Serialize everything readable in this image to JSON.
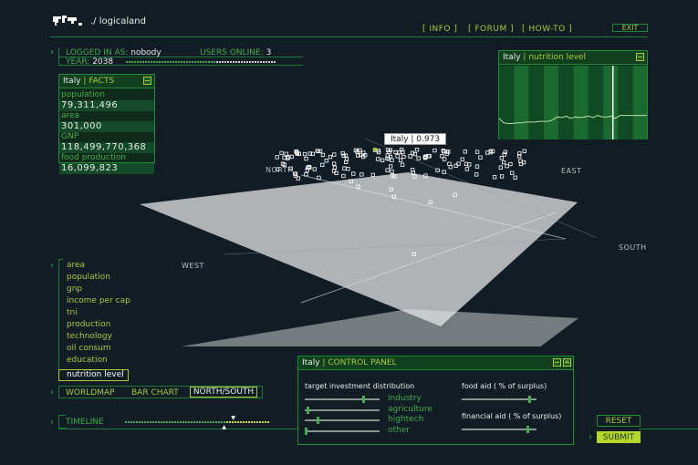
{
  "app": {
    "title": "./  logicaland",
    "logo_icon": "world-map-icon"
  },
  "nav": {
    "info": "[ INFO ]",
    "forum": "[ FORUM ]",
    "howto": "[ HOW-TO ]",
    "exit": "EXIT"
  },
  "status": {
    "logged_label": "LOGGED IN AS:",
    "user": "nobody",
    "online_label": "USERS ONLINE:",
    "online": "3",
    "year_label": "YEAR:",
    "year": "2038",
    "year_progress": 0.6
  },
  "facts": {
    "country": "Italy",
    "title": "FACTS",
    "items": [
      {
        "label": "population",
        "value": "79,311,496"
      },
      {
        "label": "area",
        "value": "301,000"
      },
      {
        "label": "GNP",
        "value": "118,499,770,368"
      },
      {
        "label": "food production",
        "value": "16,099,823"
      }
    ]
  },
  "nutrition": {
    "country": "Italy",
    "title": "nutrition level",
    "series": [
      0.78,
      0.72,
      0.71,
      0.71,
      0.72,
      0.72,
      0.73,
      0.73,
      0.73,
      0.74,
      0.74,
      0.74,
      0.76,
      0.8,
      0.79,
      0.81,
      0.78,
      0.8,
      0.79,
      0.8,
      0.81,
      0.79,
      0.82,
      0.8,
      0.8,
      0.81,
      0.78,
      0.82,
      0.82,
      0.82,
      0.82,
      0.82,
      0.82,
      0.82
    ],
    "cursor": 0.77
  },
  "plot": {
    "tooltip": "Italy | 0.973",
    "north": "NORTH",
    "east": "EAST",
    "south": "SOUTH",
    "west": "WEST",
    "highlight_color": "#a7c93a"
  },
  "menu": {
    "items": [
      "area",
      "population",
      "gnp",
      "income per cap",
      "tni",
      "production",
      "technology",
      "oil consum",
      "education",
      "nutrition level"
    ],
    "selected": "nutrition level"
  },
  "views": {
    "worldmap": "WORLDMAP",
    "barchart": "BAR CHART",
    "northsouth": "NORTH/SOUTH",
    "selected": "NORTH/SOUTH"
  },
  "timeline": {
    "label": "TIMELINE",
    "position": 0.69
  },
  "control": {
    "country": "Italy",
    "title": "CONTROL PANEL",
    "target_label": "target investment distribution",
    "sliders": [
      {
        "label": "industry",
        "value": 0.8
      },
      {
        "label": "agriculture",
        "value": 0.02
      },
      {
        "label": "hightech",
        "value": 0.16
      },
      {
        "label": "other",
        "value": 0.0
      }
    ],
    "food_aid_label": "food aid ( % of surplus)",
    "food_aid": 0.93,
    "financial_aid_label": "financial aid ( % of surplus)",
    "financial_aid": 0.9
  },
  "buttons": {
    "reset": "RESET",
    "submit": "SUBMIT"
  },
  "colors": {
    "accent": "#a7c93a",
    "green": "#3fae4a",
    "border": "#1d7a36",
    "background": "#111c25"
  }
}
